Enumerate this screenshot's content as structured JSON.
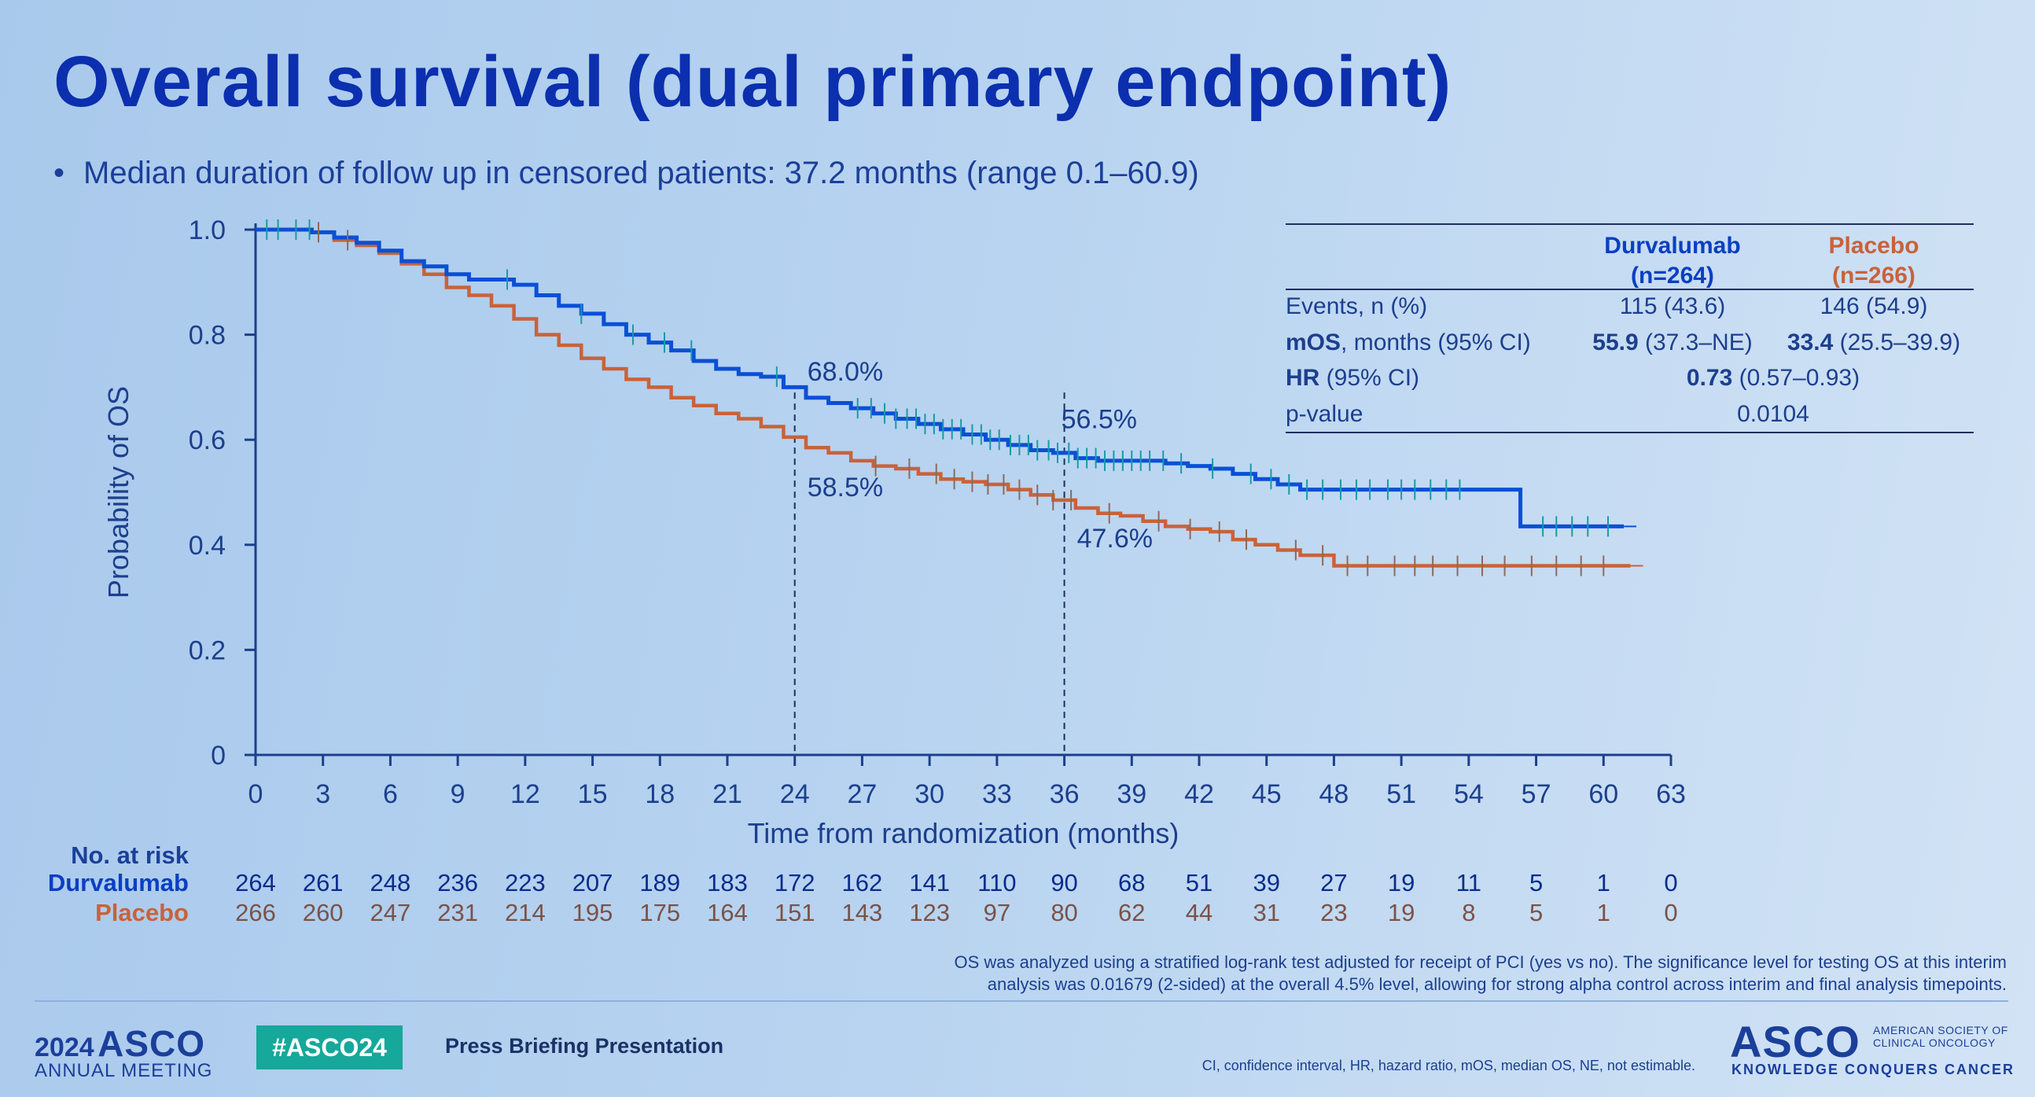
{
  "slide": {
    "title": "Overall survival (dual primary endpoint)",
    "bullet": "•",
    "subtitle": "Median duration of follow up in censored patients: 37.2 months (range 0.1–60.9)"
  },
  "colors": {
    "durvalumab": "#0a4fd6",
    "placebo": "#c9623a",
    "title": "#0b2fae"
  },
  "chart_data": {
    "type": "line",
    "xlabel": "Time from randomization (months)",
    "ylabel": "Probability of OS",
    "xlim": [
      0,
      63
    ],
    "ylim": [
      0,
      1.0
    ],
    "xticks": [
      "0",
      "3",
      "6",
      "9",
      "12",
      "15",
      "18",
      "21",
      "24",
      "27",
      "30",
      "33",
      "36",
      "39",
      "42",
      "45",
      "48",
      "51",
      "54",
      "57",
      "60",
      "63"
    ],
    "yticks": [
      "0",
      "0.2",
      "0.4",
      "0.6",
      "0.8",
      "1.0"
    ],
    "series": [
      {
        "name": "Durvalumab",
        "x": [
          0,
          1.5,
          2.5,
          3.5,
          4.5,
          5.5,
          6.5,
          7.5,
          8.5,
          9.5,
          10.5,
          11.5,
          12.5,
          13.5,
          14.5,
          15.5,
          16.5,
          17.5,
          18.5,
          19.5,
          20.5,
          21.5,
          22.5,
          23.5,
          24.5,
          25.5,
          26.5,
          27.5,
          28.5,
          29.5,
          30.5,
          31.5,
          32.5,
          33.5,
          34.5,
          35.5,
          36.5,
          37.5,
          38.5,
          39.5,
          40.5,
          41.5,
          42.5,
          43.5,
          44.5,
          45.5,
          46.5,
          48,
          50,
          52,
          54,
          55.5,
          56.3,
          57.5,
          59,
          60.9
        ],
        "y": [
          1.0,
          1.0,
          0.995,
          0.985,
          0.975,
          0.96,
          0.94,
          0.93,
          0.915,
          0.905,
          0.905,
          0.895,
          0.875,
          0.855,
          0.84,
          0.82,
          0.8,
          0.785,
          0.77,
          0.75,
          0.735,
          0.725,
          0.72,
          0.7,
          0.68,
          0.67,
          0.66,
          0.65,
          0.64,
          0.63,
          0.62,
          0.61,
          0.6,
          0.59,
          0.58,
          0.575,
          0.565,
          0.56,
          0.56,
          0.56,
          0.555,
          0.55,
          0.545,
          0.535,
          0.525,
          0.515,
          0.505,
          0.505,
          0.505,
          0.505,
          0.505,
          0.505,
          0.435,
          0.435,
          0.435,
          0.435
        ]
      },
      {
        "name": "Placebo",
        "x": [
          0,
          1.5,
          2.5,
          3.5,
          4.5,
          5.5,
          6.5,
          7.5,
          8.5,
          9.5,
          10.5,
          11.5,
          12.5,
          13.5,
          14.5,
          15.5,
          16.5,
          17.5,
          18.5,
          19.5,
          20.5,
          21.5,
          22.5,
          23.5,
          24.5,
          25.5,
          26.5,
          27.5,
          28.5,
          29.5,
          30.5,
          31.5,
          32.5,
          33.5,
          34.5,
          35.5,
          36.5,
          37.5,
          38.5,
          39.5,
          40.5,
          41.5,
          42.5,
          43.5,
          44.5,
          45.5,
          46.5,
          48,
          50,
          52,
          54,
          56,
          58,
          60,
          61.2
        ],
        "y": [
          1.0,
          1.0,
          0.995,
          0.98,
          0.97,
          0.955,
          0.935,
          0.915,
          0.89,
          0.875,
          0.855,
          0.83,
          0.8,
          0.78,
          0.755,
          0.735,
          0.715,
          0.7,
          0.68,
          0.665,
          0.65,
          0.64,
          0.625,
          0.605,
          0.585,
          0.575,
          0.56,
          0.55,
          0.545,
          0.535,
          0.525,
          0.52,
          0.515,
          0.505,
          0.495,
          0.485,
          0.47,
          0.46,
          0.455,
          0.445,
          0.435,
          0.43,
          0.425,
          0.41,
          0.4,
          0.39,
          0.38,
          0.36,
          0.36,
          0.36,
          0.36,
          0.36,
          0.36,
          0.36,
          0.36
        ]
      }
    ],
    "annotations": [
      {
        "x": 24,
        "y": 0.68,
        "label": "68.0%"
      },
      {
        "x": 24,
        "y": 0.585,
        "label": "58.5%"
      },
      {
        "x": 36,
        "y": 0.565,
        "label": "56.5%"
      },
      {
        "x": 36,
        "y": 0.476,
        "label": "47.6%"
      }
    ],
    "reference_lines_x": [
      24,
      36
    ],
    "censor_marks": {
      "Durvalumab": [
        0.5,
        1,
        1.8,
        2.4,
        11.2,
        14.5,
        16.8,
        18.2,
        19.4,
        23.2,
        26.8,
        27.4,
        28.0,
        28.5,
        29.0,
        29.4,
        29.8,
        30.2,
        30.6,
        31.0,
        31.4,
        31.9,
        32.3,
        32.7,
        33.1,
        33.6,
        34.0,
        34.4,
        34.8,
        35.3,
        35.7,
        36.2,
        36.6,
        37.0,
        37.4,
        37.8,
        38.2,
        38.6,
        39.0,
        39.4,
        39.8,
        40.4,
        41.2,
        42.6,
        44.3,
        45.2,
        46.0,
        46.8,
        47.5,
        48.3,
        49.0,
        49.6,
        50.4,
        51.0,
        51.6,
        52.3,
        53.0,
        53.6,
        57.3,
        57.9,
        58.6,
        59.3,
        60.2
      ],
      "Placebo": [
        2.8,
        4.1,
        27.6,
        29.1,
        30.3,
        31.1,
        31.9,
        32.6,
        33.3,
        34.0,
        34.8,
        35.5,
        36.3,
        38.0,
        40.2,
        41.6,
        42.9,
        44.1,
        46.3,
        47.5,
        48.6,
        49.5,
        50.7,
        51.6,
        52.4,
        53.5,
        54.6,
        55.6,
        56.8,
        57.9,
        59.0,
        60.0
      ]
    },
    "summary_table": {
      "headers": [
        {
          "line1": "Durvalumab",
          "line2": "(n=264)"
        },
        {
          "line1": "Placebo",
          "line2": "(n=266)"
        }
      ],
      "rows": [
        {
          "label_bold": "",
          "label": "Events, n (%)",
          "durv_bold": "",
          "durv": "115 (43.6)",
          "plac_bold": "",
          "plac": "146 (54.9)"
        },
        {
          "label_bold": "mOS",
          "label": ", months (95% CI)",
          "durv_bold": "55.9",
          "durv": " (37.3–NE)",
          "plac_bold": "33.4",
          "plac": " (25.5–39.9)"
        },
        {
          "label_bold": "HR",
          "label": " (95% CI)",
          "span_bold": "0.73",
          "span": " (0.57–0.93)"
        },
        {
          "label_bold": "",
          "label": "p-value",
          "span_bold": "",
          "span": "0.0104"
        }
      ]
    },
    "risk_table": {
      "title": "No. at risk",
      "times": [
        0,
        3,
        6,
        9,
        12,
        15,
        18,
        21,
        24,
        27,
        30,
        33,
        36,
        39,
        42,
        45,
        48,
        51,
        54,
        57,
        60,
        63
      ],
      "Durvalumab": [
        "264",
        "261",
        "248",
        "236",
        "223",
        "207",
        "189",
        "183",
        "172",
        "162",
        "141",
        "110",
        "90",
        "68",
        "51",
        "39",
        "27",
        "19",
        "11",
        "5",
        "1",
        "0"
      ],
      "Placebo": [
        "266",
        "260",
        "247",
        "231",
        "214",
        "195",
        "175",
        "164",
        "151",
        "143",
        "123",
        "97",
        "80",
        "62",
        "44",
        "31",
        "23",
        "19",
        "8",
        "5",
        "1",
        "0"
      ]
    }
  },
  "risk_labels": {
    "durvalumab": "Durvalumab",
    "placebo": "Placebo"
  },
  "footnote": {
    "line1": "OS was analyzed using a stratified log-rank test adjusted for receipt of PCI (yes vs no). The significance level for testing OS at this interim",
    "line2": "analysis was 0.01679 (2-sided) at the overall 4.5% level, allowing for strong alpha control across interim and final analysis timepoints."
  },
  "footer": {
    "year": "2024",
    "asco": "ASCO",
    "meeting": "ANNUAL MEETING",
    "hashtag": "#ASCO24",
    "press": "Press Briefing Presentation",
    "abbreviations": "CI, confidence interval, HR, hazard ratio, mOS, median OS, NE, not estimable.",
    "logo_asco": "ASCO",
    "logo_society": "AMERICAN SOCIETY OF CLINICAL ONCOLOGY",
    "logo_tagline": "KNOWLEDGE CONQUERS CANCER"
  }
}
